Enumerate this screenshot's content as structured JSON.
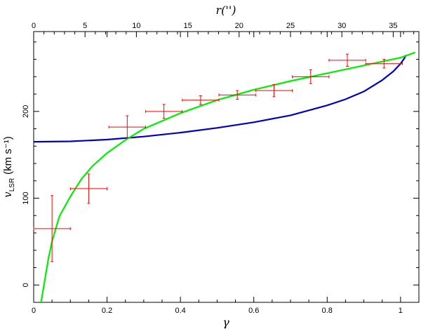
{
  "chart_data": {
    "type": "scatter",
    "xlabel": "γ",
    "ylabel": "v",
    "ylabel_sub": "LSR",
    "ylabel_unit": "(km s⁻¹)",
    "top_xlabel": "r('')",
    "xlim": [
      0,
      1.05
    ],
    "ylim": [
      -20,
      292
    ],
    "top_xlim": [
      0,
      37.5
    ],
    "xticks": [
      "0",
      "0.2",
      "0.4",
      "0.6",
      "0.8",
      "1"
    ],
    "yticks": [
      "0",
      "100",
      "200"
    ],
    "top_xticks": [
      "0",
      "5",
      "10",
      "15",
      "20",
      "25",
      "30",
      "35"
    ],
    "grid": false,
    "colors": {
      "points": "#ff0000",
      "model_blue": "#0000c0",
      "model_green": "#00ee00"
    },
    "points": [
      {
        "x": 0.05,
        "xerr": 0.05,
        "y": 65,
        "yerr": 38
      },
      {
        "x": 0.15,
        "xerr": 0.05,
        "y": 111,
        "yerr": 17
      },
      {
        "x": 0.255,
        "xerr": 0.05,
        "y": 182,
        "yerr": 13
      },
      {
        "x": 0.355,
        "xerr": 0.05,
        "y": 200,
        "yerr": 8
      },
      {
        "x": 0.455,
        "xerr": 0.05,
        "y": 213,
        "yerr": 5
      },
      {
        "x": 0.555,
        "xerr": 0.05,
        "y": 219,
        "yerr": 5
      },
      {
        "x": 0.655,
        "xerr": 0.05,
        "y": 224,
        "yerr": 7
      },
      {
        "x": 0.755,
        "xerr": 0.05,
        "y": 240,
        "yerr": 8
      },
      {
        "x": 0.855,
        "xerr": 0.05,
        "y": 259,
        "yerr": 7
      },
      {
        "x": 0.955,
        "xerr": 0.05,
        "y": 255,
        "yerr": 5
      }
    ],
    "curves": [
      {
        "color": "#0000c0",
        "x": [
          0,
          0.1,
          0.2,
          0.3,
          0.4,
          0.5,
          0.6,
          0.7,
          0.8,
          0.85,
          0.9,
          0.95,
          0.98,
          1.0,
          1.01,
          1.015
        ],
        "y": [
          165,
          165.5,
          167.5,
          171,
          175.5,
          181,
          187.5,
          195.5,
          207,
          214,
          223,
          236,
          246,
          255,
          261,
          265
        ]
      },
      {
        "color": "#00ee00",
        "x": [
          0.02,
          0.03,
          0.04,
          0.05,
          0.07,
          0.1,
          0.13,
          0.16,
          0.2,
          0.25,
          0.3,
          0.4,
          0.5,
          0.6,
          0.7,
          0.8,
          0.9,
          1.0,
          1.04
        ],
        "y": [
          -20,
          5,
          30,
          50,
          79,
          102,
          122,
          137,
          152,
          167,
          180,
          198,
          213,
          225,
          235,
          244,
          253,
          262,
          268
        ]
      }
    ]
  }
}
